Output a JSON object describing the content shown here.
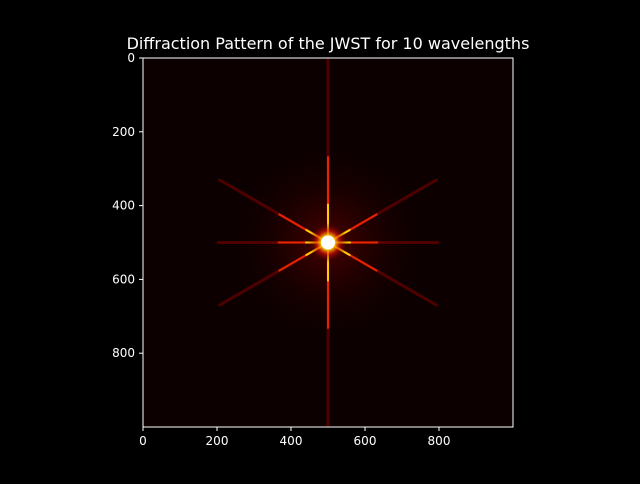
{
  "chart_data": {
    "type": "heatmap",
    "title": "Diffraction Pattern of the JWST for 10 wavelengths",
    "xlabel": "",
    "ylabel": "",
    "xlim": [
      0,
      1000
    ],
    "ylim": [
      1000,
      0
    ],
    "x_ticks": [
      "0",
      "200",
      "400",
      "600",
      "800"
    ],
    "y_ticks": [
      "0",
      "200",
      "400",
      "600",
      "800"
    ],
    "colormap": "hot",
    "background_color": "#0d0000",
    "peak": {
      "x": 500,
      "y": 500
    },
    "spike_angles_deg": [
      0,
      30,
      90,
      150
    ],
    "grid": false,
    "legend": "none"
  }
}
